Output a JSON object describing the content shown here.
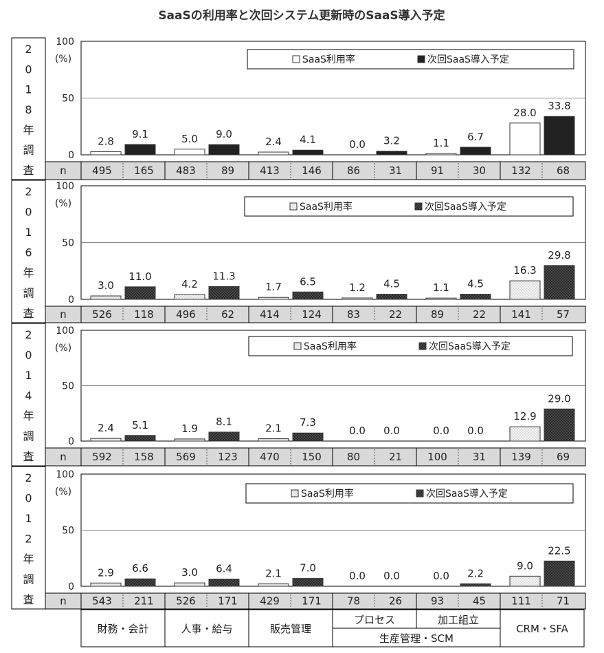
{
  "title": "SaaSの利用率と次回システム更新時のSaaS導入予定",
  "n_label": "n",
  "y_unit": "(%)",
  "y_ticks": [
    0,
    50,
    100
  ],
  "categories_bottom": {
    "groups": [
      "財務・会計",
      "人事・給与",
      "販売管理",
      "生産管理・SCM",
      "CRM・SFA"
    ],
    "sub_items": [
      "プロセス",
      "加工組立"
    ]
  },
  "colors": {
    "saas_2018": "#ffffff",
    "plan_2018": "#222222",
    "saas_dotted": "#eeeeee",
    "plan_dotted": "#333333",
    "n_row_bg": "#d9d9d9"
  },
  "chart_data": [
    {
      "type": "bar",
      "year_label": "2018年調査",
      "ylim": [
        0,
        100
      ],
      "legend": [
        "SaaS利用率",
        "次回SaaS導入予定"
      ],
      "categories": [
        "財務・会計",
        "人事・給与",
        "販売管理",
        "プロセス",
        "加工組立",
        "CRM・SFA"
      ],
      "series": [
        {
          "name": "SaaS利用率",
          "values": [
            2.8,
            5.0,
            2.4,
            0.0,
            1.1,
            28.0
          ],
          "n": [
            495,
            483,
            413,
            86,
            91,
            132
          ]
        },
        {
          "name": "次回SaaS導入予定",
          "values": [
            9.1,
            9.0,
            4.1,
            3.2,
            6.7,
            33.8
          ],
          "n": [
            165,
            89,
            146,
            31,
            30,
            68
          ]
        }
      ]
    },
    {
      "type": "bar",
      "year_label": "2016年調査",
      "ylim": [
        0,
        100
      ],
      "legend": [
        "SaaS利用率",
        "次回SaaS導入予定"
      ],
      "categories": [
        "財務・会計",
        "人事・給与",
        "販売管理",
        "プロセス",
        "加工組立",
        "CRM・SFA"
      ],
      "series": [
        {
          "name": "SaaS利用率",
          "values": [
            3.0,
            4.2,
            1.7,
            1.2,
            1.1,
            16.3
          ],
          "n": [
            526,
            496,
            414,
            83,
            89,
            141
          ]
        },
        {
          "name": "次回SaaS導入予定",
          "values": [
            11.0,
            11.3,
            6.5,
            4.5,
            4.5,
            29.8
          ],
          "n": [
            118,
            62,
            124,
            22,
            22,
            57
          ]
        }
      ]
    },
    {
      "type": "bar",
      "year_label": "2014年調査",
      "ylim": [
        0,
        100
      ],
      "legend": [
        "SaaS利用率",
        "次回SaaS導入予定"
      ],
      "categories": [
        "財務・会計",
        "人事・給与",
        "販売管理",
        "プロセス",
        "加工組立",
        "CRM・SFA"
      ],
      "series": [
        {
          "name": "SaaS利用率",
          "values": [
            2.4,
            1.9,
            2.1,
            0.0,
            0.0,
            12.9
          ],
          "n": [
            592,
            569,
            470,
            80,
            100,
            139
          ]
        },
        {
          "name": "次回SaaS導入予定",
          "values": [
            5.1,
            8.1,
            7.3,
            0.0,
            0.0,
            29.0
          ],
          "n": [
            158,
            123,
            150,
            21,
            31,
            69
          ]
        }
      ]
    },
    {
      "type": "bar",
      "year_label": "2012年調査",
      "ylim": [
        0,
        100
      ],
      "legend": [
        "SaaS利用率",
        "次回SaaS導入予定"
      ],
      "categories": [
        "財務・会計",
        "人事・給与",
        "販売管理",
        "プロセス",
        "加工組立",
        "CRM・SFA"
      ],
      "series": [
        {
          "name": "SaaS利用率",
          "values": [
            2.9,
            3.0,
            2.1,
            0.0,
            0.0,
            9.0
          ],
          "n": [
            543,
            526,
            429,
            78,
            93,
            111
          ]
        },
        {
          "name": "次回SaaS導入予定",
          "values": [
            6.6,
            6.4,
            7.0,
            0.0,
            2.2,
            22.5
          ],
          "n": [
            211,
            171,
            171,
            26,
            45,
            71
          ]
        }
      ]
    }
  ]
}
